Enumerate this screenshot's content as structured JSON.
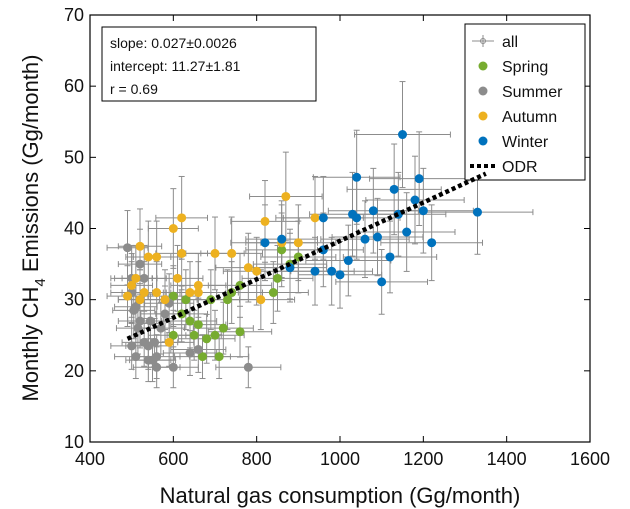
{
  "chart_data": {
    "type": "scatter",
    "xlabel": "Natural gas consumption (Gg/month)",
    "ylabel_main": "Monthly CH",
    "ylabel_sub": "4",
    "ylabel_tail": " Emissions (Gg/month)",
    "xlim": [
      400,
      1600
    ],
    "ylim": [
      10,
      70
    ],
    "xticks": [
      400,
      600,
      800,
      1000,
      1200,
      1400,
      1600
    ],
    "yticks": [
      10,
      20,
      30,
      40,
      50,
      60,
      70
    ],
    "grid": false,
    "legend_position": "top-right",
    "annotation": {
      "slope": "slope: 0.027±0.0026",
      "intercept": "intercept: 11.27±1.81",
      "r": "r = 0.69"
    },
    "legend": [
      {
        "key": "all",
        "label": "all",
        "color": "#8c8c8c"
      },
      {
        "key": "spring",
        "label": "Spring",
        "color": "#77ac30"
      },
      {
        "key": "summer",
        "label": "Summer",
        "color": "#8c8c8c"
      },
      {
        "key": "autumn",
        "label": "Autumn",
        "color": "#edb120"
      },
      {
        "key": "winter",
        "label": "Winter",
        "color": "#0072bd"
      },
      {
        "key": "odr",
        "label": "ODR",
        "color": "#000000"
      }
    ],
    "odr_line": {
      "x": [
        490,
        1350
      ],
      "y": [
        24.5,
        47.7
      ]
    },
    "series": [
      {
        "key": "spring",
        "color": "#77ac30",
        "points": [
          [
            600,
            30.5
          ],
          [
            620,
            28
          ],
          [
            640,
            27
          ],
          [
            660,
            26.5
          ],
          [
            680,
            24.5
          ],
          [
            700,
            25
          ],
          [
            720,
            26
          ],
          [
            740,
            31
          ],
          [
            760,
            32
          ],
          [
            840,
            31
          ],
          [
            860,
            37
          ],
          [
            880,
            35
          ],
          [
            690,
            30
          ],
          [
            710,
            22
          ],
          [
            730,
            30
          ],
          [
            650,
            25
          ],
          [
            670,
            22
          ],
          [
            760,
            25.5
          ],
          [
            600,
            25
          ],
          [
            630,
            30
          ],
          [
            900,
            36
          ],
          [
            850,
            33
          ]
        ]
      },
      {
        "key": "summer",
        "color": "#8c8c8c",
        "points": [
          [
            490,
            37.3
          ],
          [
            500,
            33
          ],
          [
            510,
            29
          ],
          [
            520,
            27
          ],
          [
            530,
            24
          ],
          [
            540,
            23.5
          ],
          [
            550,
            21.5
          ],
          [
            560,
            22
          ],
          [
            570,
            26
          ],
          [
            580,
            28
          ],
          [
            590,
            29.5
          ],
          [
            500,
            23.5
          ],
          [
            510,
            22
          ],
          [
            520,
            30
          ],
          [
            530,
            33
          ],
          [
            540,
            21.5
          ],
          [
            560,
            20.5
          ],
          [
            600,
            20.5
          ],
          [
            640,
            22.5
          ],
          [
            660,
            23
          ],
          [
            780,
            20.5
          ],
          [
            500,
            31
          ],
          [
            520,
            35
          ],
          [
            545,
            27
          ],
          [
            515,
            26
          ],
          [
            505,
            28.5
          ],
          [
            555,
            24
          ]
        ]
      },
      {
        "key": "autumn",
        "color": "#edb120",
        "points": [
          [
            490,
            30.5
          ],
          [
            500,
            32
          ],
          [
            510,
            33
          ],
          [
            520,
            37.5
          ],
          [
            540,
            36
          ],
          [
            560,
            31
          ],
          [
            600,
            40
          ],
          [
            620,
            41.5
          ],
          [
            620,
            36.5
          ],
          [
            640,
            31
          ],
          [
            660,
            31
          ],
          [
            700,
            36.5
          ],
          [
            740,
            36.5
          ],
          [
            800,
            34
          ],
          [
            820,
            41
          ],
          [
            860,
            38
          ],
          [
            870,
            44.5
          ],
          [
            900,
            38
          ],
          [
            940,
            41.5
          ],
          [
            580,
            30
          ],
          [
            590,
            24
          ],
          [
            610,
            33
          ],
          [
            560,
            36
          ],
          [
            520,
            30
          ],
          [
            530,
            31
          ],
          [
            660,
            32
          ],
          [
            780,
            34.5
          ],
          [
            810,
            30
          ]
        ]
      },
      {
        "key": "winter",
        "color": "#0072bd",
        "points": [
          [
            820,
            38
          ],
          [
            860,
            38.5
          ],
          [
            880,
            34.5
          ],
          [
            940,
            34
          ],
          [
            960,
            41.5
          ],
          [
            980,
            34
          ],
          [
            1000,
            33.5
          ],
          [
            1020,
            35.5
          ],
          [
            1030,
            42
          ],
          [
            1040,
            41.5
          ],
          [
            1060,
            38.5
          ],
          [
            1080,
            42.5
          ],
          [
            1090,
            38.8
          ],
          [
            1100,
            32.5
          ],
          [
            1120,
            36
          ],
          [
            1130,
            45.5
          ],
          [
            1140,
            42
          ],
          [
            1150,
            53.2
          ],
          [
            1160,
            39.5
          ],
          [
            1180,
            44
          ],
          [
            1190,
            47
          ],
          [
            1200,
            42.5
          ],
          [
            1220,
            38
          ],
          [
            1330,
            42.3
          ],
          [
            1040,
            47.2
          ],
          [
            960,
            37
          ]
        ]
      }
    ]
  }
}
